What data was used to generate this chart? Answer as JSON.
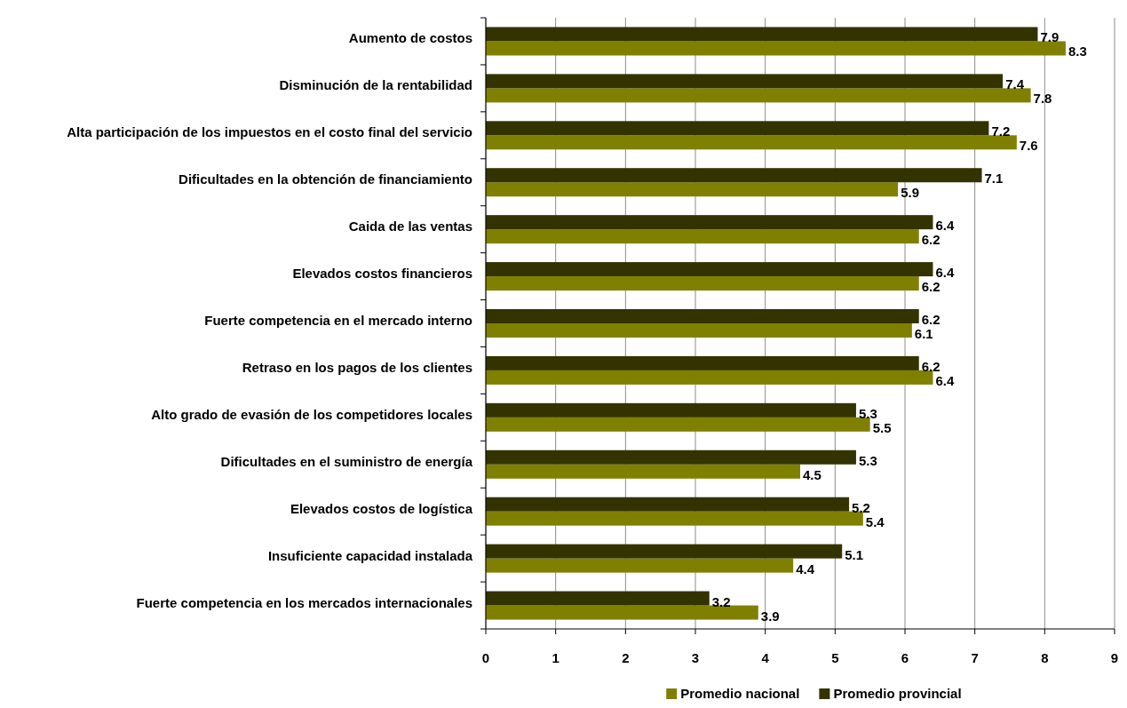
{
  "chart_data": {
    "type": "bar",
    "orientation": "horizontal",
    "categories": [
      "Aumento de costos",
      "Disminución de la rentabilidad",
      "Alta participación de los impuestos en el costo final del servicio",
      "Dificultades en la obtención de financiamiento",
      "Caida de las ventas",
      "Elevados costos financieros",
      "Fuerte competencia en el mercado interno",
      "Retraso en los pagos de los clientes",
      "Alto grado de evasión de los competidores locales",
      "Dificultades en el suministro de energía",
      "Elevados costos de logística",
      "Insuficiente capacidad instalada",
      "Fuerte competencia en los mercados internacionales"
    ],
    "series": [
      {
        "name": "Promedio nacional",
        "color": "#808000",
        "values": [
          8.3,
          7.8,
          7.6,
          5.9,
          6.2,
          6.2,
          6.1,
          6.4,
          5.5,
          4.5,
          5.4,
          4.4,
          3.9
        ]
      },
      {
        "name": "Promedio provincial",
        "color": "#333300",
        "values": [
          7.9,
          7.4,
          7.2,
          7.1,
          6.4,
          6.4,
          6.2,
          6.2,
          5.3,
          5.3,
          5.2,
          5.1,
          3.2
        ]
      }
    ],
    "xlim": [
      0,
      9
    ],
    "xticks": [
      0,
      1,
      2,
      3,
      4,
      5,
      6,
      7,
      8,
      9
    ],
    "grid": "x",
    "legend": "bottom",
    "data_labels": true
  }
}
